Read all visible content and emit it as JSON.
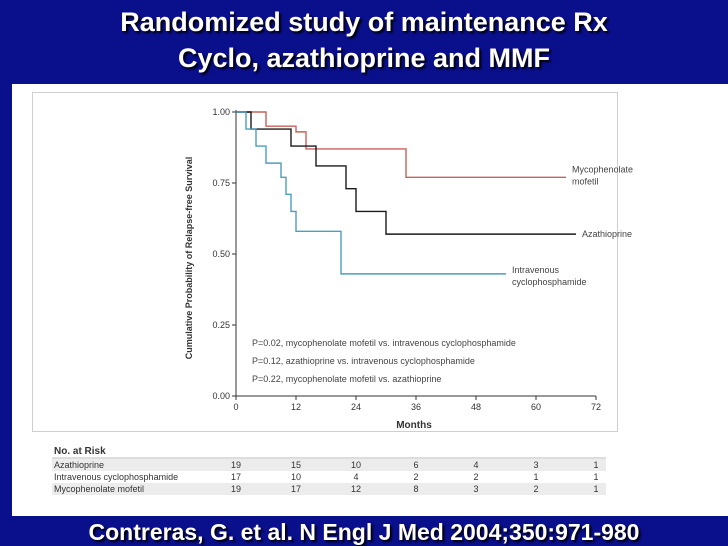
{
  "slide": {
    "title_line1": "Randomized study of maintenance Rx",
    "title_line2": "Cyclo, azathioprine and MMF",
    "citation": "Contreras, G. et al. N Engl J Med 2004;350:971-980"
  },
  "colors": {
    "background": "#0a0f8c",
    "mycophenolate": "#c8625a",
    "azathioprine": "#1a1a1a",
    "cyclophosphamide": "#4a9ec0"
  },
  "chart_data": {
    "type": "line",
    "ylabel": "Cumulative Probability of Relapse-free Survival",
    "xlabel": "Months",
    "xlim": [
      0,
      72
    ],
    "ylim": [
      0,
      1.0
    ],
    "x_ticks": [
      "0",
      "12",
      "24",
      "36",
      "48",
      "60",
      "72"
    ],
    "y_ticks": [
      "0.00",
      "0.25",
      "0.50",
      "0.75",
      "1.00"
    ],
    "series": [
      {
        "name": "Mycophenolate mofetil",
        "label_lines": [
          "Mycophenolate",
          "mofetil"
        ],
        "color": "#c8625a",
        "steps": [
          [
            0,
            1.0
          ],
          [
            6,
            0.95
          ],
          [
            12,
            0.93
          ],
          [
            14,
            0.87
          ],
          [
            34,
            0.77
          ],
          [
            66,
            0.77
          ]
        ]
      },
      {
        "name": "Azathioprine",
        "label_lines": [
          "Azathioprine"
        ],
        "color": "#1a1a1a",
        "steps": [
          [
            0,
            1.0
          ],
          [
            3,
            0.94
          ],
          [
            11,
            0.88
          ],
          [
            16,
            0.81
          ],
          [
            22,
            0.73
          ],
          [
            24,
            0.65
          ],
          [
            30,
            0.57
          ],
          [
            68,
            0.57
          ]
        ]
      },
      {
        "name": "Intravenous cyclophosphamide",
        "label_lines": [
          "Intravenous",
          "cyclophosphamide"
        ],
        "color": "#4a9ec0",
        "steps": [
          [
            0,
            1.0
          ],
          [
            2,
            0.94
          ],
          [
            4,
            0.88
          ],
          [
            6,
            0.82
          ],
          [
            9,
            0.77
          ],
          [
            10,
            0.71
          ],
          [
            11,
            0.65
          ],
          [
            12,
            0.58
          ],
          [
            21,
            0.43
          ],
          [
            54,
            0.43
          ]
        ]
      }
    ],
    "annotations": [
      "P=0.02, mycophenolate mofetil vs. intravenous cyclophosphamide",
      "P=0.12, azathioprine vs. intravenous cyclophosphamide",
      "P=0.22, mycophenolate mofetil vs. azathioprine"
    ],
    "risk_table": {
      "header": "No. at Risk",
      "rows": [
        {
          "label": "Azathioprine",
          "values": [
            "19",
            "15",
            "10",
            "6",
            "4",
            "3",
            "1"
          ]
        },
        {
          "label": "Intravenous cyclophosphamide",
          "values": [
            "17",
            "10",
            "4",
            "2",
            "2",
            "1",
            "1"
          ]
        },
        {
          "label": "Mycophenolate mofetil",
          "values": [
            "19",
            "17",
            "12",
            "8",
            "3",
            "2",
            "1"
          ]
        }
      ]
    }
  }
}
